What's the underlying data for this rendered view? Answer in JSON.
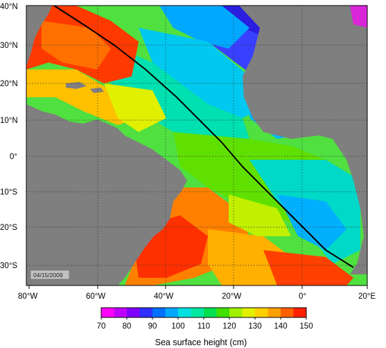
{
  "map": {
    "lon_labels": [
      "80°W",
      "60°W",
      "40°W",
      "20°W",
      "0°",
      "20°E"
    ],
    "lat_labels": [
      "40°N",
      "30°N",
      "20°N",
      "10°N",
      "0°",
      "10°S",
      "20°S",
      "30°S"
    ],
    "date_label": "04/15/2009",
    "colors": {
      "land": "#7f7f7f",
      "track": "#000000",
      "gridline": "#333333"
    }
  },
  "colorbar": {
    "title": "Sea surface height (cm)",
    "ticks": [
      "70",
      "80",
      "90",
      "100",
      "110",
      "120",
      "130",
      "140",
      "150"
    ],
    "colors": [
      "#ff00ff",
      "#c000ff",
      "#8000ff",
      "#3030ff",
      "#0070ff",
      "#00a8ff",
      "#00e0e0",
      "#00e8a0",
      "#00e050",
      "#40e000",
      "#a0f000",
      "#e0f000",
      "#ffd000",
      "#ffa000",
      "#ff6000",
      "#ff2000"
    ]
  }
}
